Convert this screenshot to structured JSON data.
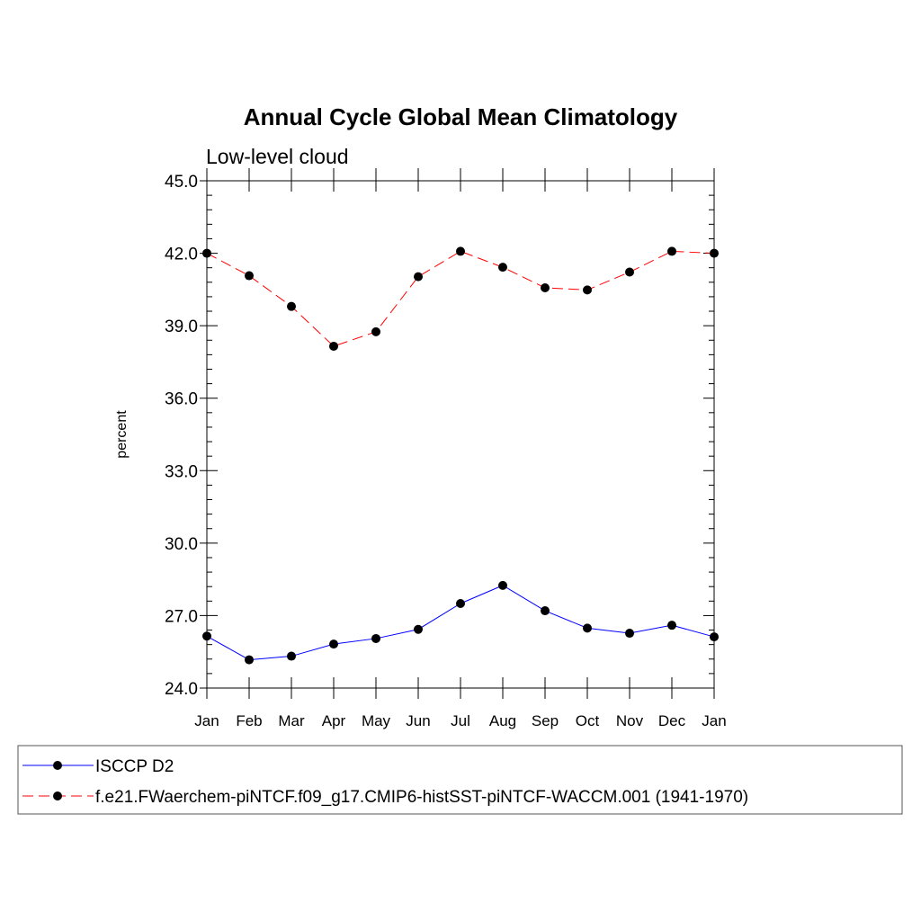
{
  "chart_data": {
    "type": "line",
    "title": "Annual Cycle Global Mean Climatology",
    "subtitle": "Low-level cloud",
    "xlabel": "",
    "ylabel": "percent",
    "categories": [
      "Jan",
      "Feb",
      "Mar",
      "Apr",
      "May",
      "Jun",
      "Jul",
      "Aug",
      "Sep",
      "Oct",
      "Nov",
      "Dec",
      "Jan"
    ],
    "ylim": [
      24.0,
      45.0
    ],
    "yticks": [
      "24.0",
      "27.0",
      "30.0",
      "33.0",
      "36.0",
      "39.0",
      "42.0",
      "45.0"
    ],
    "grid": false,
    "legend_position": "bottom",
    "series": [
      {
        "name": "ISCCP D2",
        "color": "#0000ff",
        "line_style": "solid",
        "marker": "filled-circle",
        "values": [
          26.15,
          25.17,
          25.32,
          25.82,
          26.05,
          26.43,
          27.5,
          28.25,
          27.2,
          26.48,
          26.27,
          26.6,
          26.12
        ]
      },
      {
        "name": "f.e21.FWaerchem-piNTCF.f09_g17.CMIP6-histSST-piNTCF-WACCM.001 (1941-1970)",
        "color": "#ff0000",
        "line_style": "dashed",
        "marker": "filled-circle",
        "values": [
          42.0,
          41.07,
          39.8,
          38.15,
          38.75,
          41.03,
          42.08,
          41.42,
          40.57,
          40.48,
          41.22,
          42.08,
          42.0
        ]
      }
    ]
  }
}
